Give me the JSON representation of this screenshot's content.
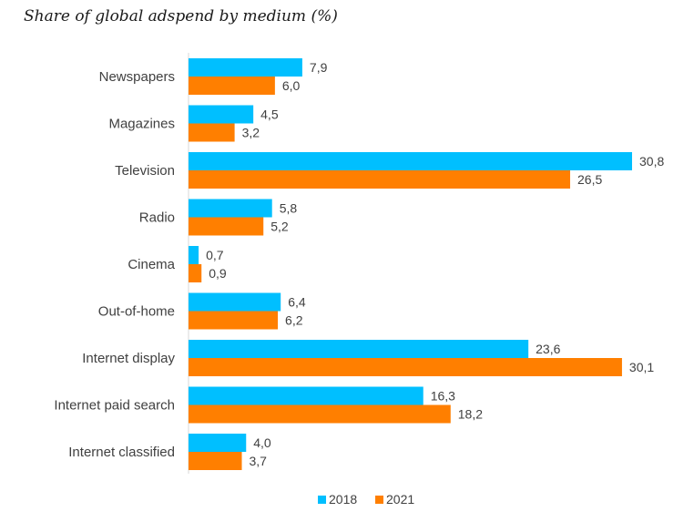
{
  "chart_data": {
    "type": "bar",
    "orientation": "horizontal",
    "title": "Share of global adspend by medium (%)",
    "categories": [
      "Newspapers",
      "Magazines",
      "Television",
      "Radio",
      "Cinema",
      "Out-of-home",
      "Internet display",
      "Internet paid search",
      "Internet classified"
    ],
    "series": [
      {
        "name": "2018",
        "color": "#00BFFF",
        "values": [
          7.9,
          4.5,
          30.8,
          5.8,
          0.7,
          6.4,
          23.6,
          16.3,
          4.0
        ],
        "labels": [
          "7,9",
          "4,5",
          "30,8",
          "5,8",
          "0,7",
          "6,4",
          "23,6",
          "16,3",
          "4,0"
        ]
      },
      {
        "name": "2021",
        "color": "#FF7F00",
        "values": [
          6.0,
          3.2,
          26.5,
          5.2,
          0.9,
          6.2,
          30.1,
          18.2,
          3.7
        ],
        "labels": [
          "6,0",
          "3,2",
          "26,5",
          "5,2",
          "0,9",
          "6,2",
          "30,1",
          "18,2",
          "3,7"
        ]
      }
    ],
    "xlim": [
      0,
      30.8
    ],
    "grid": false,
    "legend_position": "bottom"
  }
}
